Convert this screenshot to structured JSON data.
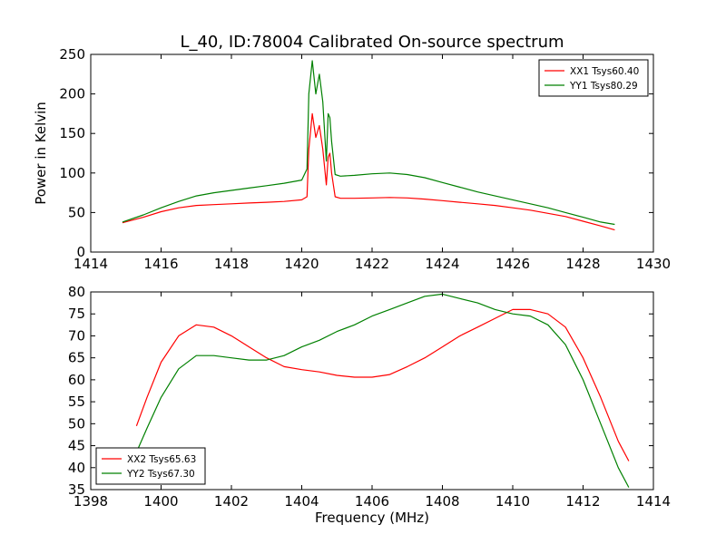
{
  "chart_data": [
    {
      "type": "line",
      "title": "L_40, ID:78004 Calibrated On-source spectrum",
      "xlabel": "",
      "ylabel": "Power in Kelvin",
      "xlim": [
        1414,
        1430
      ],
      "ylim": [
        0,
        250
      ],
      "xticks": [
        1414,
        1416,
        1418,
        1420,
        1422,
        1424,
        1426,
        1428,
        1430
      ],
      "yticks": [
        0,
        50,
        100,
        150,
        200,
        250
      ],
      "legend_position": "top-right",
      "series": [
        {
          "name": "XX1 Tsys60.40",
          "color": "#ff0000",
          "x": [
            1414.9,
            1415.5,
            1416.0,
            1416.5,
            1417.0,
            1417.5,
            1418.0,
            1418.5,
            1419.0,
            1419.5,
            1420.0,
            1420.15,
            1420.2,
            1420.3,
            1420.4,
            1420.5,
            1420.6,
            1420.7,
            1420.75,
            1420.8,
            1420.85,
            1420.95,
            1421.1,
            1421.5,
            1422.0,
            1422.5,
            1423.0,
            1423.5,
            1424.0,
            1424.5,
            1425.0,
            1425.5,
            1426.0,
            1426.5,
            1427.0,
            1427.5,
            1428.0,
            1428.5,
            1428.9
          ],
          "y": [
            37,
            44,
            51,
            56,
            59,
            60,
            61,
            62,
            63,
            64,
            66,
            70,
            130,
            175,
            145,
            160,
            130,
            85,
            120,
            125,
            100,
            70,
            68,
            68,
            68.5,
            69,
            68.5,
            67,
            65,
            63,
            61,
            59,
            56,
            53,
            49,
            45,
            39,
            33,
            28
          ]
        },
        {
          "name": "YY1 Tsys80.29",
          "color": "#008000",
          "x": [
            1414.9,
            1415.5,
            1416.0,
            1416.5,
            1417.0,
            1417.5,
            1418.0,
            1418.5,
            1419.0,
            1419.5,
            1420.0,
            1420.15,
            1420.2,
            1420.3,
            1420.4,
            1420.5,
            1420.6,
            1420.7,
            1420.75,
            1420.8,
            1420.85,
            1420.95,
            1421.1,
            1421.5,
            1422.0,
            1422.5,
            1423.0,
            1423.5,
            1424.0,
            1424.5,
            1425.0,
            1425.5,
            1426.0,
            1426.5,
            1427.0,
            1427.5,
            1428.0,
            1428.5,
            1428.9
          ],
          "y": [
            38,
            47,
            56,
            64,
            71,
            75,
            78,
            81,
            84,
            87,
            91,
            105,
            200,
            242,
            200,
            225,
            190,
            115,
            175,
            170,
            140,
            98,
            96,
            97,
            99,
            100,
            98,
            94,
            88,
            82,
            76,
            71,
            66,
            61,
            56,
            50,
            44,
            38,
            35
          ]
        }
      ]
    },
    {
      "type": "line",
      "title": "",
      "xlabel": "Frequency (MHz)",
      "ylabel": "",
      "xlim": [
        1398,
        1414
      ],
      "ylim": [
        35,
        80
      ],
      "xticks": [
        1398,
        1400,
        1402,
        1404,
        1406,
        1408,
        1410,
        1412,
        1414
      ],
      "yticks": [
        35,
        40,
        45,
        50,
        55,
        60,
        65,
        70,
        75,
        80
      ],
      "legend_position": "bottom-left",
      "series": [
        {
          "name": "XX2 Tsys65.63",
          "color": "#ff0000",
          "x": [
            1399.3,
            1399.6,
            1400.0,
            1400.5,
            1401.0,
            1401.5,
            1402.0,
            1402.5,
            1403.0,
            1403.5,
            1404.0,
            1404.5,
            1405.0,
            1405.5,
            1406.0,
            1406.5,
            1407.0,
            1407.5,
            1408.0,
            1408.5,
            1409.0,
            1409.5,
            1410.0,
            1410.5,
            1411.0,
            1411.5,
            1412.0,
            1412.5,
            1413.0,
            1413.3
          ],
          "y": [
            49.5,
            56,
            64,
            70,
            72.5,
            72,
            70,
            67.5,
            65,
            63,
            62.3,
            61.8,
            61,
            60.6,
            60.6,
            61.2,
            63,
            65,
            67.5,
            70,
            72,
            74,
            76,
            76,
            75,
            72,
            65,
            56,
            46,
            41.5
          ]
        },
        {
          "name": "YY2 Tsys67.30",
          "color": "#008000",
          "x": [
            1399.3,
            1399.6,
            1400.0,
            1400.5,
            1401.0,
            1401.5,
            1402.0,
            1402.5,
            1403.0,
            1403.5,
            1404.0,
            1404.5,
            1405.0,
            1405.5,
            1406.0,
            1406.5,
            1407.0,
            1407.5,
            1408.0,
            1408.5,
            1409.0,
            1409.5,
            1410.0,
            1410.5,
            1411.0,
            1411.5,
            1412.0,
            1412.5,
            1413.0,
            1413.3
          ],
          "y": [
            43.5,
            49,
            56,
            62.5,
            65.5,
            65.5,
            65,
            64.5,
            64.5,
            65.5,
            67.5,
            69,
            71,
            72.5,
            74.5,
            76,
            77.5,
            79,
            79.5,
            78.5,
            77.5,
            76,
            75,
            74.5,
            72.5,
            68,
            60,
            50,
            40,
            35.5
          ]
        }
      ]
    }
  ]
}
